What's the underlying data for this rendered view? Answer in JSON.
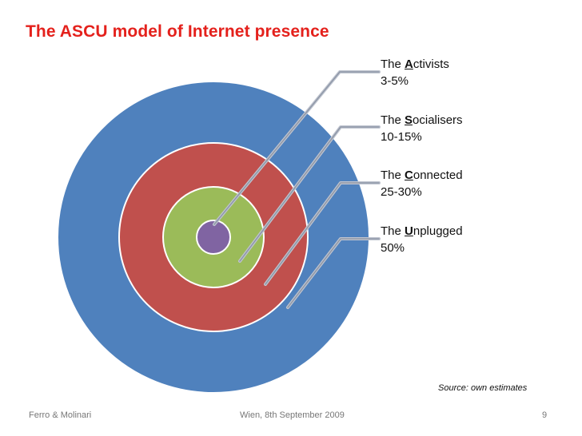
{
  "title": "The ASCU model of Internet presence",
  "colors": {
    "title": "#e4211c",
    "unplugged": "#4f81bd",
    "connected": "#c0504d",
    "socialisers": "#9bbb59",
    "activists": "#8064a2"
  },
  "segments": [
    {
      "prefix": "The ",
      "letter": "A",
      "rest": "ctivists",
      "range": "3-5%"
    },
    {
      "prefix": "The ",
      "letter": "S",
      "rest": "ocialisers",
      "range": "10-15%"
    },
    {
      "prefix": "The ",
      "letter": "C",
      "rest": "onnected",
      "range": "25-30%"
    },
    {
      "prefix": "The ",
      "letter": "U",
      "rest": "nplugged",
      "range": "50%"
    }
  ],
  "source": "Source: own estimates",
  "footer": {
    "authors": "Ferro & Molinari",
    "date": "Wien, 8th September 2009",
    "page": "9"
  }
}
